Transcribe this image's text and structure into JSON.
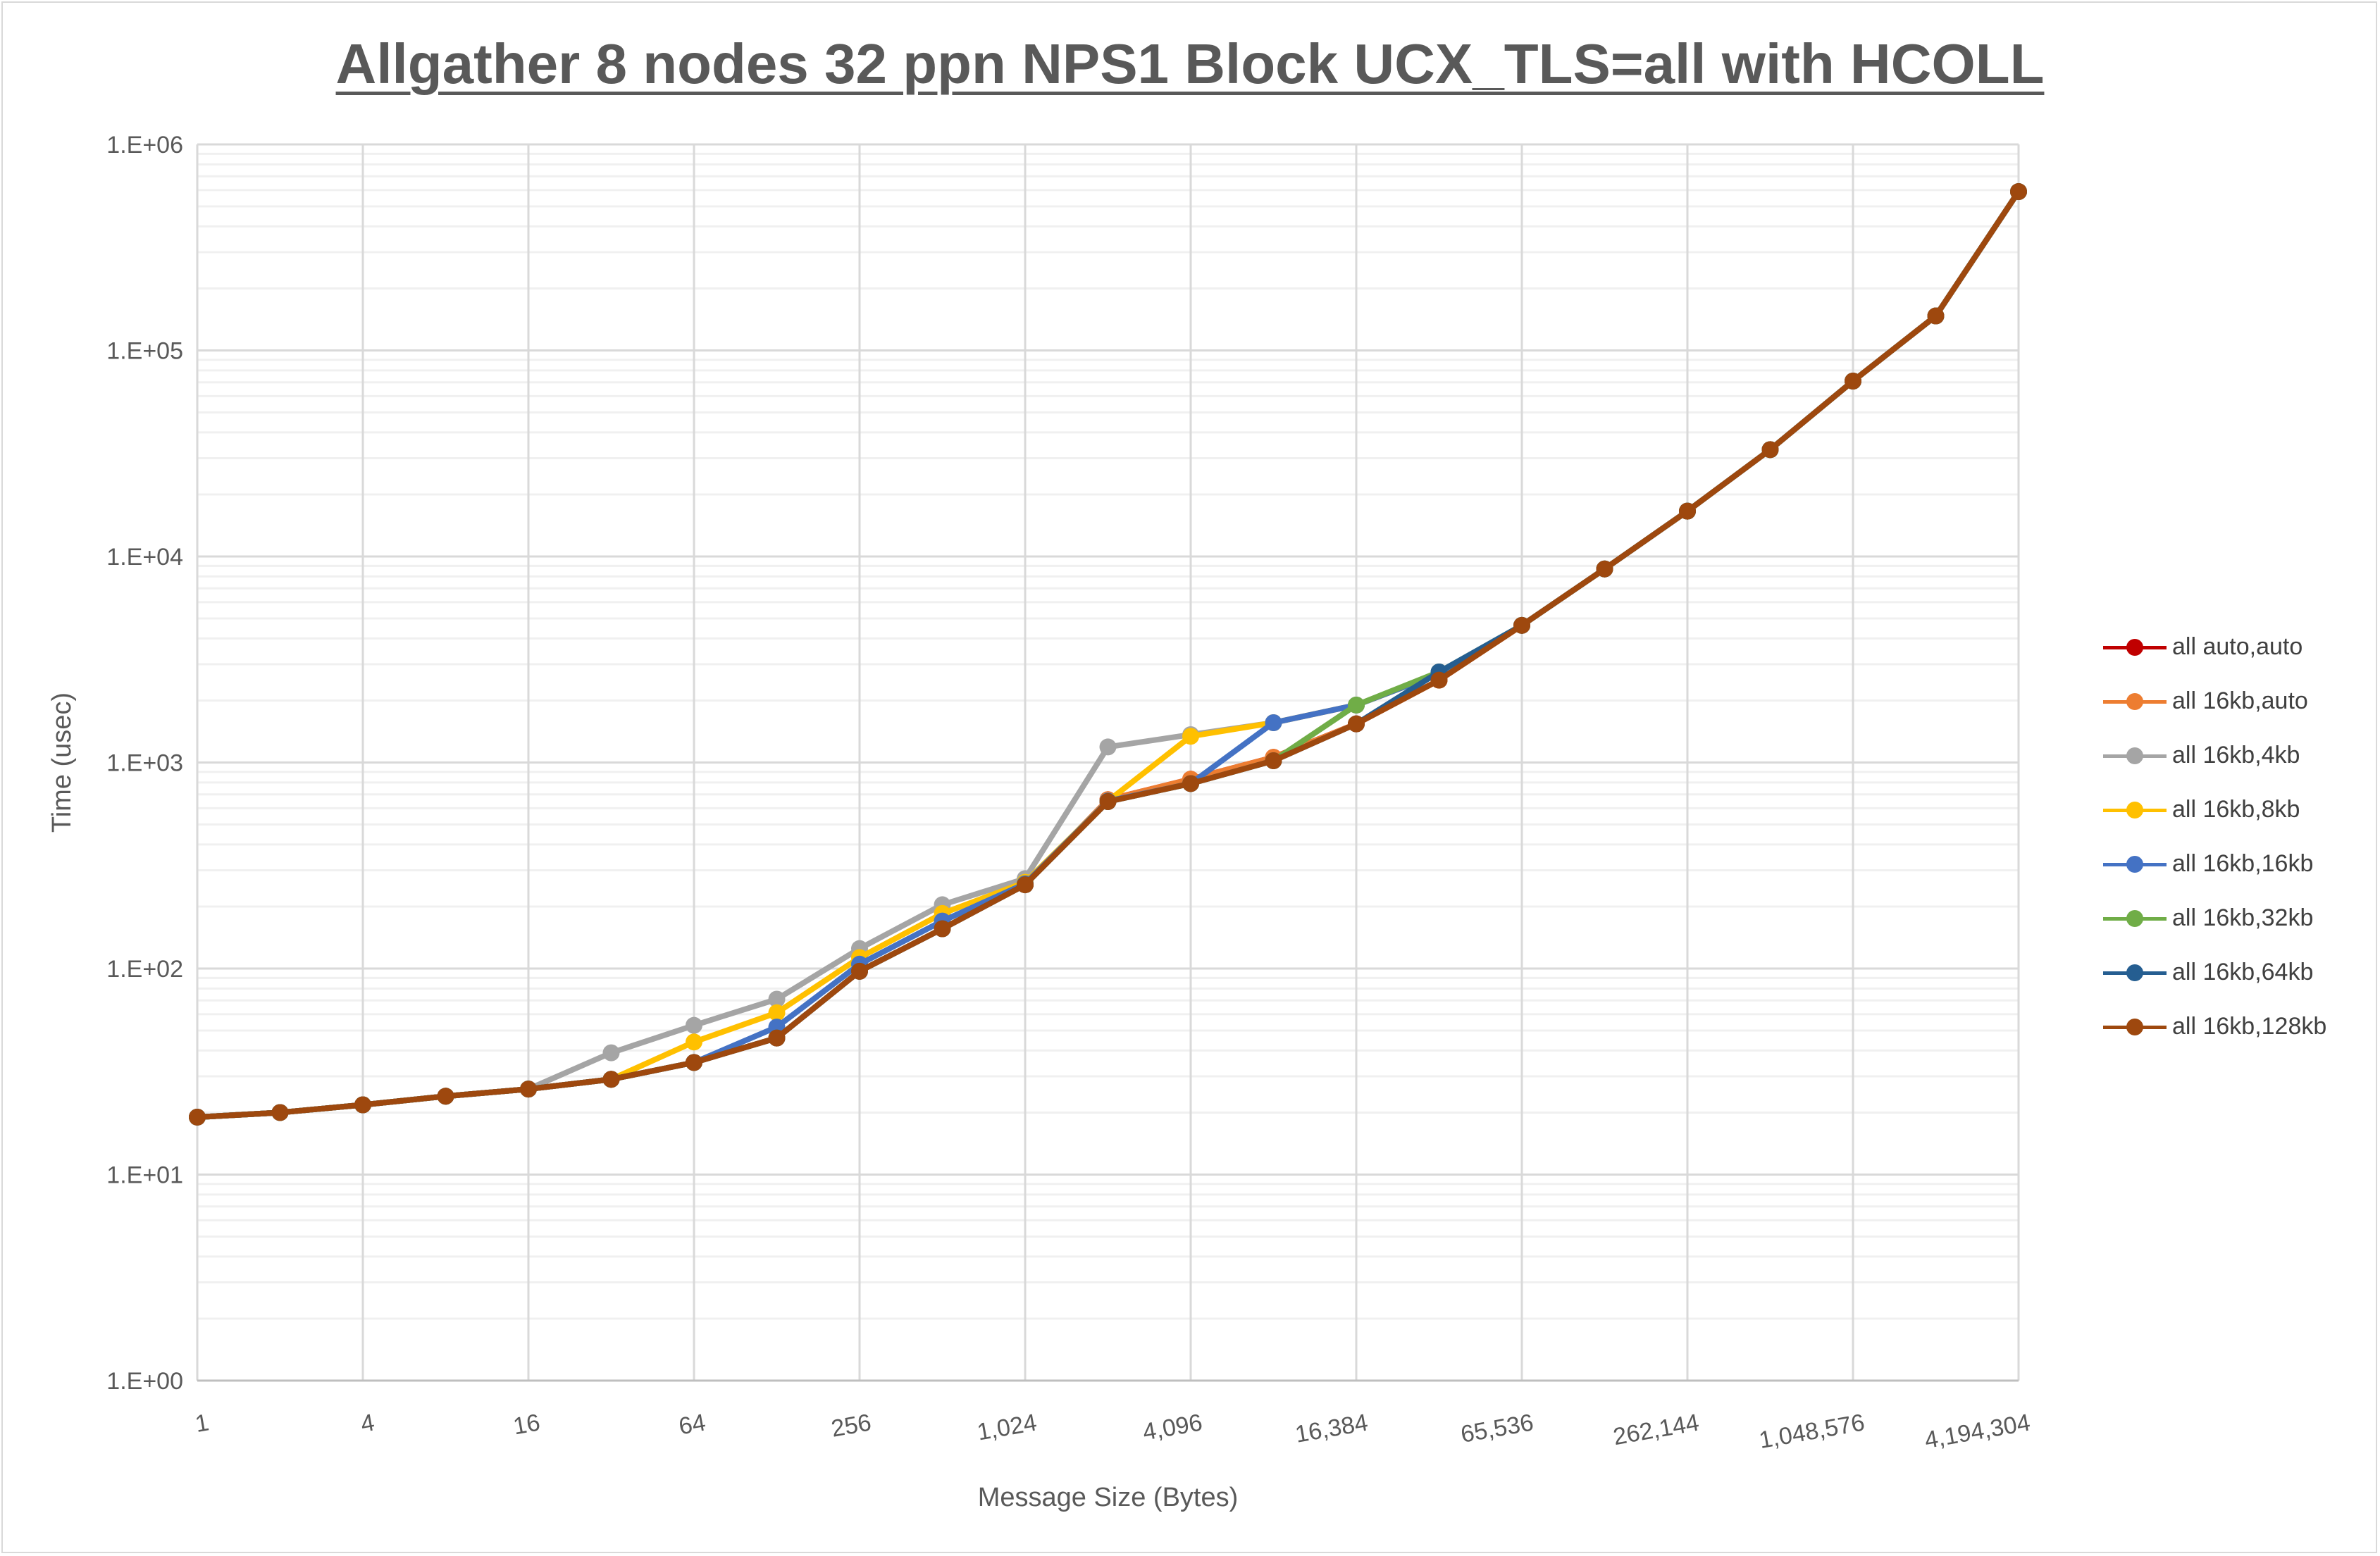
{
  "chart_data": {
    "type": "line",
    "title": "Allgather 8 nodes 32 ppn NPS1 Block UCX_TLS=all with HCOLL",
    "xlabel": "Message Size (Bytes)",
    "ylabel": "Time (usec)",
    "x_scale": "log2",
    "y_scale": "log10",
    "ylim": [
      1,
      1000000
    ],
    "grid": true,
    "legend": "right",
    "x": [
      1,
      2,
      4,
      8,
      16,
      32,
      64,
      128,
      256,
      512,
      1024,
      2048,
      4096,
      8192,
      16384,
      32768,
      65536,
      131072,
      262144,
      524288,
      1048576,
      2097152,
      4194304
    ],
    "x_tick_labels": [
      "1",
      "4",
      "16",
      "64",
      "256",
      "1,024",
      "4,096",
      "16,384",
      "65,536",
      "262,144",
      "1,048,576",
      "4,194,304"
    ],
    "y_tick_labels": [
      "1.E+00",
      "1.E+01",
      "1.E+02",
      "1.E+03",
      "1.E+04",
      "1.E+05",
      "1.E+06"
    ],
    "series": [
      {
        "name": "all auto,auto",
        "color": "#C00000",
        "values": [
          19,
          20,
          21.8,
          24,
          26,
          29,
          35,
          46,
          97,
          156,
          255,
          660,
          830,
          1060,
          1540,
          2510,
          4630,
          8700,
          16600,
          33000,
          71000,
          147000,
          590000
        ]
      },
      {
        "name": "all 16kb,auto",
        "color": "#ED7D31",
        "values": [
          19,
          20,
          21.8,
          24,
          26,
          29,
          35,
          46,
          97,
          156,
          255,
          660,
          830,
          1060,
          1540,
          2510,
          4630,
          8700,
          16600,
          33000,
          71000,
          147000,
          590000
        ]
      },
      {
        "name": "all 16kb,4kb",
        "color": "#A5A5A5",
        "values": [
          19,
          20,
          21.8,
          24,
          26,
          39,
          53,
          71,
          125,
          204,
          273,
          1190,
          1365,
          1560,
          1900,
          2700,
          4630,
          8700,
          16600,
          33000,
          71000,
          147000,
          590000
        ]
      },
      {
        "name": "all 16kb,8kb",
        "color": "#FFC000",
        "values": [
          19,
          20,
          21.8,
          24,
          26,
          29,
          44,
          61,
          113,
          185,
          262,
          650,
          1340,
          1560,
          1900,
          2700,
          4630,
          8700,
          16600,
          33000,
          71000,
          147000,
          590000
        ]
      },
      {
        "name": "all 16kb,16kb",
        "color": "#4472C4",
        "values": [
          19,
          20,
          21.8,
          24,
          26,
          29,
          35,
          52,
          105,
          170,
          258,
          650,
          790,
          1560,
          1900,
          2700,
          4630,
          8700,
          16600,
          33000,
          71000,
          147000,
          590000
        ]
      },
      {
        "name": "all 16kb,32kb",
        "color": "#70AD47",
        "values": [
          19,
          20,
          21.8,
          24,
          26,
          29,
          35,
          46,
          97,
          156,
          255,
          646,
          790,
          1020,
          1900,
          2750,
          4630,
          8700,
          16600,
          33000,
          71000,
          147000,
          590000
        ]
      },
      {
        "name": "all 16kb,64kb",
        "color": "#255E91",
        "values": [
          19,
          20,
          21.8,
          24,
          26,
          29,
          35,
          46,
          97,
          156,
          255,
          646,
          790,
          1020,
          1540,
          2750,
          4630,
          8700,
          16600,
          33000,
          71000,
          147000,
          590000
        ]
      },
      {
        "name": "all 16kb,128kb",
        "color": "#9E480E",
        "values": [
          19,
          20,
          21.8,
          24,
          26,
          29,
          35,
          46,
          97,
          156,
          255,
          646,
          790,
          1020,
          1540,
          2510,
          4630,
          8700,
          16600,
          33000,
          71000,
          147000,
          590000
        ]
      }
    ]
  }
}
